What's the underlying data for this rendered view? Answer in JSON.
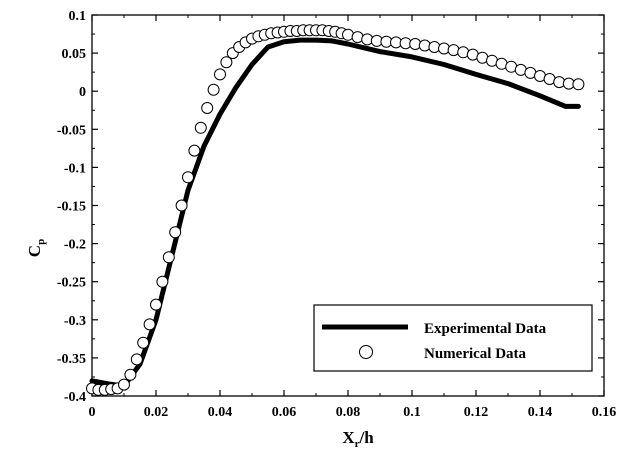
{
  "chart_data": {
    "type": "line",
    "xlabel": "X_r/h",
    "ylabel": "C_p",
    "xlim": [
      0,
      0.16
    ],
    "ylim": [
      -0.4,
      0.1
    ],
    "xticks": [
      0,
      0.02,
      0.04,
      0.06,
      0.08,
      0.1,
      0.12,
      0.14,
      0.16
    ],
    "xtick_labels": [
      "0",
      "0.02",
      "0.04",
      "0.06",
      "0.08",
      "0.1",
      "0.12",
      "0.14",
      "0.16"
    ],
    "yticks": [
      0.1,
      0.05,
      0,
      -0.05,
      -0.1,
      -0.15,
      -0.2,
      -0.25,
      -0.3,
      -0.35,
      -0.4
    ],
    "ytick_labels": [
      "0.1",
      "0.05",
      "0",
      "-0.05",
      "-0.1",
      "-0.15",
      "-0.2",
      "-0.25",
      "-0.3",
      "-0.35",
      "-0.4"
    ],
    "legend_position": "bottom-right",
    "grid": false,
    "series": [
      {
        "name": "Experimental Data",
        "style": "thick-line",
        "color": "#000000",
        "x": [
          0,
          0.005,
          0.01,
          0.015,
          0.02,
          0.025,
          0.03,
          0.035,
          0.04,
          0.045,
          0.05,
          0.055,
          0.06,
          0.065,
          0.07,
          0.075,
          0.08,
          0.085,
          0.09,
          0.1,
          0.11,
          0.12,
          0.13,
          0.14,
          0.148,
          0.152
        ],
        "y": [
          -0.38,
          -0.384,
          -0.387,
          -0.358,
          -0.3,
          -0.215,
          -0.13,
          -0.072,
          -0.03,
          0.005,
          0.035,
          0.058,
          0.065,
          0.067,
          0.067,
          0.066,
          0.062,
          0.057,
          0.052,
          0.045,
          0.035,
          0.022,
          0.01,
          -0.006,
          -0.02,
          -0.02
        ]
      },
      {
        "name": "Numerical Data",
        "style": "open-circles",
        "color": "#000000",
        "x": [
          0,
          0.002,
          0.004,
          0.006,
          0.008,
          0.01,
          0.012,
          0.014,
          0.016,
          0.018,
          0.02,
          0.022,
          0.024,
          0.026,
          0.028,
          0.03,
          0.032,
          0.034,
          0.036,
          0.038,
          0.04,
          0.042,
          0.044,
          0.046,
          0.048,
          0.05,
          0.052,
          0.054,
          0.056,
          0.058,
          0.06,
          0.062,
          0.064,
          0.066,
          0.068,
          0.07,
          0.072,
          0.074,
          0.076,
          0.078,
          0.08,
          0.083,
          0.086,
          0.089,
          0.092,
          0.095,
          0.098,
          0.101,
          0.104,
          0.107,
          0.11,
          0.113,
          0.116,
          0.119,
          0.122,
          0.125,
          0.128,
          0.131,
          0.134,
          0.137,
          0.14,
          0.143,
          0.146,
          0.149,
          0.152
        ],
        "y": [
          -0.39,
          -0.392,
          -0.392,
          -0.391,
          -0.39,
          -0.385,
          -0.372,
          -0.352,
          -0.33,
          -0.306,
          -0.28,
          -0.25,
          -0.218,
          -0.185,
          -0.15,
          -0.113,
          -0.078,
          -0.048,
          -0.022,
          0.002,
          0.022,
          0.038,
          0.05,
          0.058,
          0.064,
          0.069,
          0.072,
          0.074,
          0.076,
          0.077,
          0.078,
          0.079,
          0.079,
          0.08,
          0.08,
          0.08,
          0.08,
          0.079,
          0.078,
          0.076,
          0.074,
          0.071,
          0.068,
          0.066,
          0.065,
          0.064,
          0.063,
          0.062,
          0.06,
          0.058,
          0.056,
          0.054,
          0.051,
          0.048,
          0.044,
          0.04,
          0.036,
          0.032,
          0.028,
          0.024,
          0.02,
          0.016,
          0.012,
          0.01,
          0.009
        ]
      }
    ]
  }
}
